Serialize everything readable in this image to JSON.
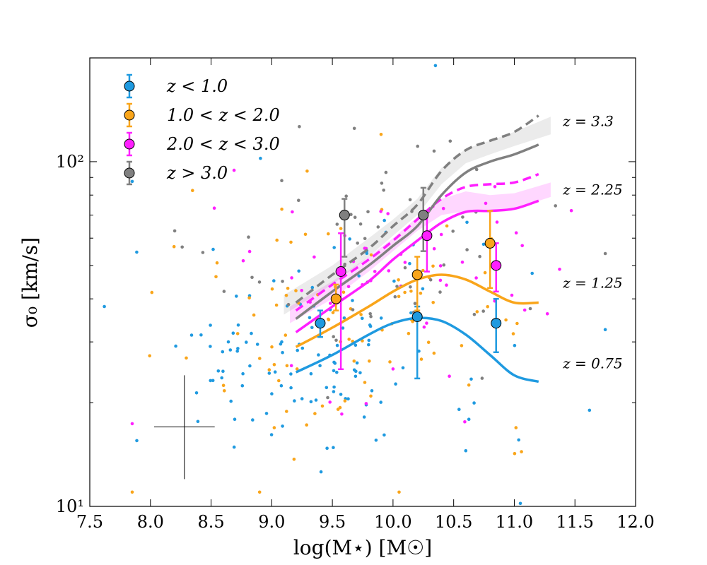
{
  "chart_data": {
    "type": "scatter",
    "xlabel": "log(M⋆) [M☉]",
    "ylabel": "σ₀ [km/s]",
    "xlim": [
      7.5,
      12.0
    ],
    "ylim": [
      10,
      200
    ],
    "yscale": "log",
    "xticks": [
      "7.5",
      "8.0",
      "8.5",
      "9.0",
      "9.5",
      "10.0",
      "10.5",
      "11.0",
      "11.5",
      "12.0"
    ],
    "yticks": [
      {
        "value": 10,
        "label": "10¹"
      },
      {
        "value": 100,
        "label": "10²"
      }
    ],
    "legend_position": "top-left",
    "colors": {
      "blue": "#1f9ae0",
      "orange": "#f9a51a",
      "magenta": "#ff1fff",
      "gray": "#808080"
    },
    "series": [
      {
        "name": "z < 1.0",
        "color": "#1f9ae0",
        "points": [
          {
            "x": 9.4,
            "y": 34,
            "ylo": 31,
            "yhi": 37
          },
          {
            "x": 10.2,
            "y": 35.5,
            "ylo": 23.5,
            "yhi": 38
          },
          {
            "x": 10.85,
            "y": 34,
            "ylo": 28,
            "yhi": 40
          }
        ]
      },
      {
        "name": "1.0 < z < 2.0",
        "color": "#f9a51a",
        "points": [
          {
            "x": 9.53,
            "y": 40,
            "ylo": 37,
            "yhi": 44
          },
          {
            "x": 10.2,
            "y": 47,
            "ylo": 37,
            "yhi": 53
          },
          {
            "x": 10.8,
            "y": 58,
            "ylo": 43,
            "yhi": 72
          }
        ]
      },
      {
        "name": "2.0 < z < 3.0",
        "color": "#ff1fff",
        "points": [
          {
            "x": 9.57,
            "y": 48,
            "ylo": 25,
            "yhi": 62
          },
          {
            "x": 10.28,
            "y": 61,
            "ylo": 48,
            "yhi": 72
          },
          {
            "x": 10.85,
            "y": 50,
            "ylo": 42,
            "yhi": 58
          }
        ]
      },
      {
        "name": "z > 3.0",
        "color": "#808080",
        "points": [
          {
            "x": 9.6,
            "y": 70,
            "ylo": 53,
            "yhi": 78
          },
          {
            "x": 10.25,
            "y": 70,
            "ylo": 55,
            "yhi": 84
          }
        ]
      }
    ],
    "model_curves": [
      {
        "label": "z = 0.75",
        "color": "#1f9ae0",
        "style": "solid",
        "x": [
          9.2,
          9.5,
          9.8,
          10.0,
          10.2,
          10.4,
          10.6,
          10.8,
          11.0,
          11.2
        ],
        "y": [
          24.5,
          27.5,
          31.5,
          34,
          35.2,
          34.5,
          31.5,
          27.5,
          24,
          23
        ]
      },
      {
        "label": "z = 1.25",
        "color": "#f9a51a",
        "style": "solid",
        "x": [
          9.2,
          9.5,
          9.8,
          10.0,
          10.2,
          10.4,
          10.6,
          10.8,
          11.0,
          11.2
        ],
        "y": [
          29,
          33,
          38,
          42,
          45.5,
          47,
          45.5,
          42,
          39,
          39
        ]
      },
      {
        "label": "z = 2.25",
        "color": "#ff1fff",
        "style": "solid",
        "x": [
          9.2,
          9.5,
          9.8,
          10.0,
          10.2,
          10.4,
          10.6,
          10.8,
          11.0,
          11.2
        ],
        "y": [
          32,
          38,
          45,
          52,
          59,
          66.5,
          71.5,
          72,
          73,
          77
        ]
      },
      {
        "label": "z = 2.25",
        "color": "#ff1fff",
        "style": "dashed",
        "x": [
          9.2,
          9.5,
          9.8,
          10.0,
          10.2,
          10.4,
          10.6,
          10.8,
          11.0,
          11.2
        ],
        "y": [
          37,
          44,
          52,
          59,
          68,
          78,
          84.5,
          86,
          87,
          92
        ]
      },
      {
        "label": "z = 3.3",
        "color": "#808080",
        "style": "solid",
        "x": [
          9.2,
          9.5,
          9.8,
          10.0,
          10.2,
          10.4,
          10.6,
          10.8,
          11.0,
          11.2
        ],
        "y": [
          35,
          42,
          50,
          57,
          65,
          80,
          93,
          100,
          105,
          112
        ]
      },
      {
        "label": "z = 3.3",
        "color": "#808080",
        "style": "dashed",
        "x": [
          9.2,
          9.5,
          9.8,
          10.0,
          10.2,
          10.4,
          10.6,
          10.8,
          11.0,
          11.2
        ],
        "y": [
          39,
          47,
          56,
          65,
          75,
          94,
          108,
          115,
          122,
          136
        ]
      }
    ],
    "shaded_bands": [
      {
        "color": "#ff1fff",
        "opacity": 0.18,
        "x": [
          9.15,
          9.5,
          9.8,
          10.0,
          10.2,
          10.4,
          10.6,
          10.8,
          11.0,
          11.3
        ],
        "ylo": [
          34,
          40,
          48,
          55,
          63,
          70,
          72,
          72,
          73,
          79
        ],
        "yhi": [
          38,
          45,
          53,
          60,
          69,
          78,
          82,
          80,
          81,
          87
        ]
      },
      {
        "color": "#9a9a9a",
        "opacity": 0.2,
        "x": [
          9.1,
          9.5,
          9.8,
          10.0,
          10.2,
          10.4,
          10.6,
          10.8,
          11.0,
          11.3
        ],
        "ylo": [
          36,
          44,
          53,
          61,
          70,
          86,
          99,
          105,
          111,
          120
        ],
        "yhi": [
          41,
          50,
          60,
          68,
          78,
          96,
          109,
          115,
          122,
          135
        ]
      }
    ],
    "curve_labels": [
      {
        "text": "z = 3.3",
        "x": 11.4,
        "y": 131
      },
      {
        "text": "z = 2.25",
        "x": 11.4,
        "y": 83
      },
      {
        "text": "z = 1.25",
        "x": 11.4,
        "y": 44.5
      },
      {
        "text": "z = 0.75",
        "x": 11.4,
        "y": 26
      }
    ],
    "typical_error": {
      "x": 8.28,
      "y": 17,
      "xerr": 0.25,
      "ylo": 12,
      "yhi": 24
    },
    "background_points": {
      "seed": 7,
      "counts": {
        "#1f9ae0": 130,
        "#f9a51a": 95,
        "#ff1fff": 55,
        "#808080": 60
      },
      "centers": {
        "#1f9ae0": [
          9.3,
          28
        ],
        "#f9a51a": [
          9.7,
          36
        ],
        "#ff1fff": [
          10.1,
          45
        ],
        "#808080": [
          9.9,
          58
        ]
      },
      "spread": {
        "x": 0.75,
        "logy": 0.17
      },
      "extra": [
        {
          "x": 10.35,
          "y": 190,
          "c": "#1f9ae0"
        },
        {
          "x": 11.05,
          "y": 10.2,
          "c": "#1f9ae0"
        },
        {
          "x": 7.62,
          "y": 38,
          "c": "#1f9ae0"
        },
        {
          "x": 11.62,
          "y": 19,
          "c": "#1f9ae0"
        },
        {
          "x": 8.9,
          "y": 11,
          "c": "#f9a51a"
        },
        {
          "x": 8.2,
          "y": 63,
          "c": "#808080"
        },
        {
          "x": 10.05,
          "y": 11,
          "c": "#f9a51a"
        },
        {
          "x": 10.6,
          "y": 14.5,
          "c": "#1f9ae0"
        }
      ]
    }
  }
}
